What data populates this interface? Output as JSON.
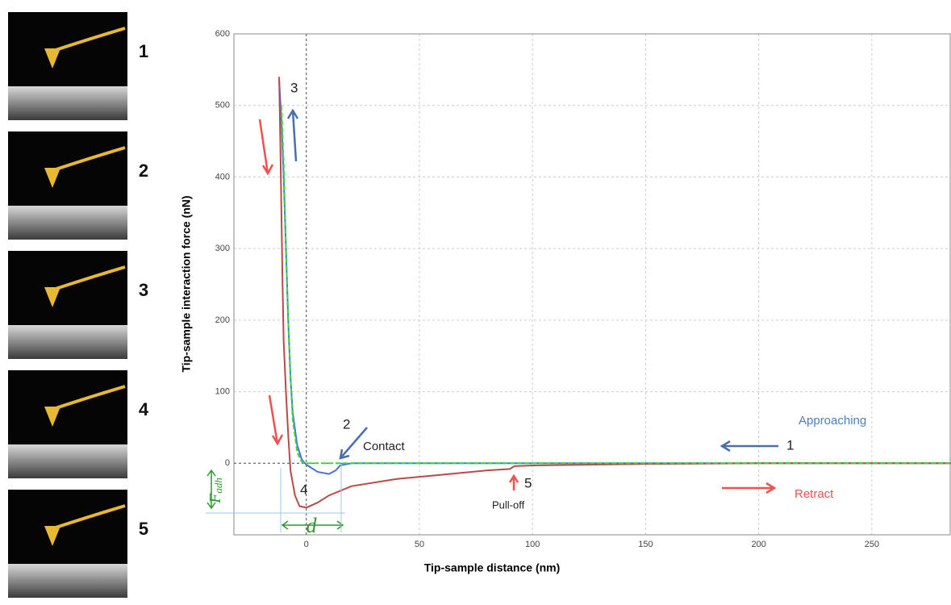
{
  "panel_labels": [
    "1",
    "2",
    "3",
    "4",
    "5"
  ],
  "chart_data": {
    "type": "line",
    "x_label": "Tip-sample distance (nm)",
    "y_label": "Tip-sample interaction force (nN)",
    "xlim": [
      -32,
      285
    ],
    "xticks": [
      0,
      50,
      100,
      150,
      200,
      250
    ],
    "ylim": [
      -100,
      600
    ],
    "yticks": [
      0,
      100,
      200,
      300,
      400,
      500,
      600
    ],
    "grid": true,
    "series": [
      {
        "name": "Approaching",
        "color": "#4a6fe0",
        "x": [
          -12,
          -11,
          -10,
          -9,
          -8,
          -7,
          -6,
          -4,
          -2,
          0,
          5,
          10,
          13,
          15,
          20,
          100,
          285
        ],
        "values": [
          535,
          480,
          400,
          300,
          200,
          120,
          70,
          25,
          5,
          -2,
          -12,
          -15,
          -10,
          -3,
          0,
          0,
          0
        ]
      },
      {
        "name": "Retract",
        "color": "#b84a4a",
        "x": [
          -12,
          -11.5,
          -11,
          -10.5,
          -10,
          -9,
          -8,
          -7,
          -5,
          -3,
          0,
          5,
          10,
          20,
          40,
          60,
          80,
          90,
          92,
          100,
          150,
          200,
          285
        ],
        "values": [
          540,
          450,
          350,
          250,
          170,
          100,
          40,
          -10,
          -45,
          -60,
          -62,
          -55,
          -45,
          -32,
          -22,
          -16,
          -10,
          -8,
          -4,
          -3,
          -1,
          0,
          0
        ]
      },
      {
        "color": "#33dd33",
        "x": [
          -11,
          -10,
          -9,
          -8,
          -7,
          -6,
          -4,
          -2,
          0,
          285
        ],
        "values": [
          500,
          420,
          300,
          200,
          120,
          60,
          15,
          2,
          0,
          0
        ]
      }
    ],
    "annotations": {
      "point_3": "3",
      "point_2": "2",
      "contact": "Contact",
      "point_1": "1",
      "point_4": "4",
      "point_5": "5",
      "pull_off": "Pull-off",
      "f_adh": "F",
      "f_adh_sub": "adh",
      "d": "d"
    }
  }
}
